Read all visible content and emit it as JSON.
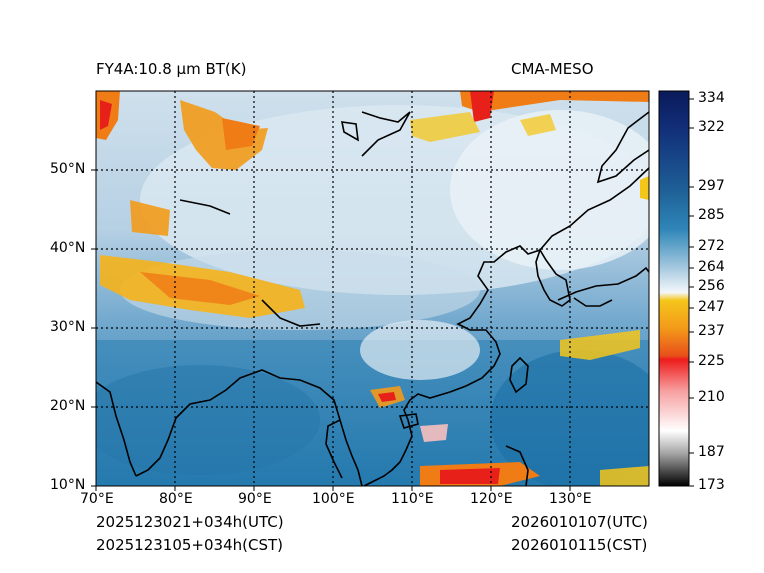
{
  "header": {
    "left_title": "FY4A:10.8 µm BT(K)",
    "right_title": "CMA-MESO"
  },
  "map": {
    "lat_ticks": [
      "10°N",
      "20°N",
      "30°N",
      "40°N",
      "50°N"
    ],
    "lon_ticks": [
      "70°E",
      "80°E",
      "90°E",
      "100°E",
      "110°E",
      "120°E",
      "130°E"
    ]
  },
  "colorbar": {
    "ticks": [
      "334",
      "322",
      "297",
      "285",
      "272",
      "264",
      "256",
      "247",
      "237",
      "225",
      "210",
      "187",
      "173"
    ],
    "colors": {
      "top": "#0a1a5a",
      "mid_blue": "#1f72a8",
      "light": "#e8f0f6",
      "yellow": "#f5c61a",
      "orange": "#f07c16",
      "red": "#e8201a",
      "pink": "#f8c0c0",
      "gray": "#8a8a8a",
      "black": "#000000"
    }
  },
  "footer": {
    "left_utc": "2025123021+034h(UTC)",
    "left_cst": "2025123105+034h(CST)",
    "right_utc": "2026010107(UTC)",
    "right_cst": "2026010115(CST)"
  }
}
